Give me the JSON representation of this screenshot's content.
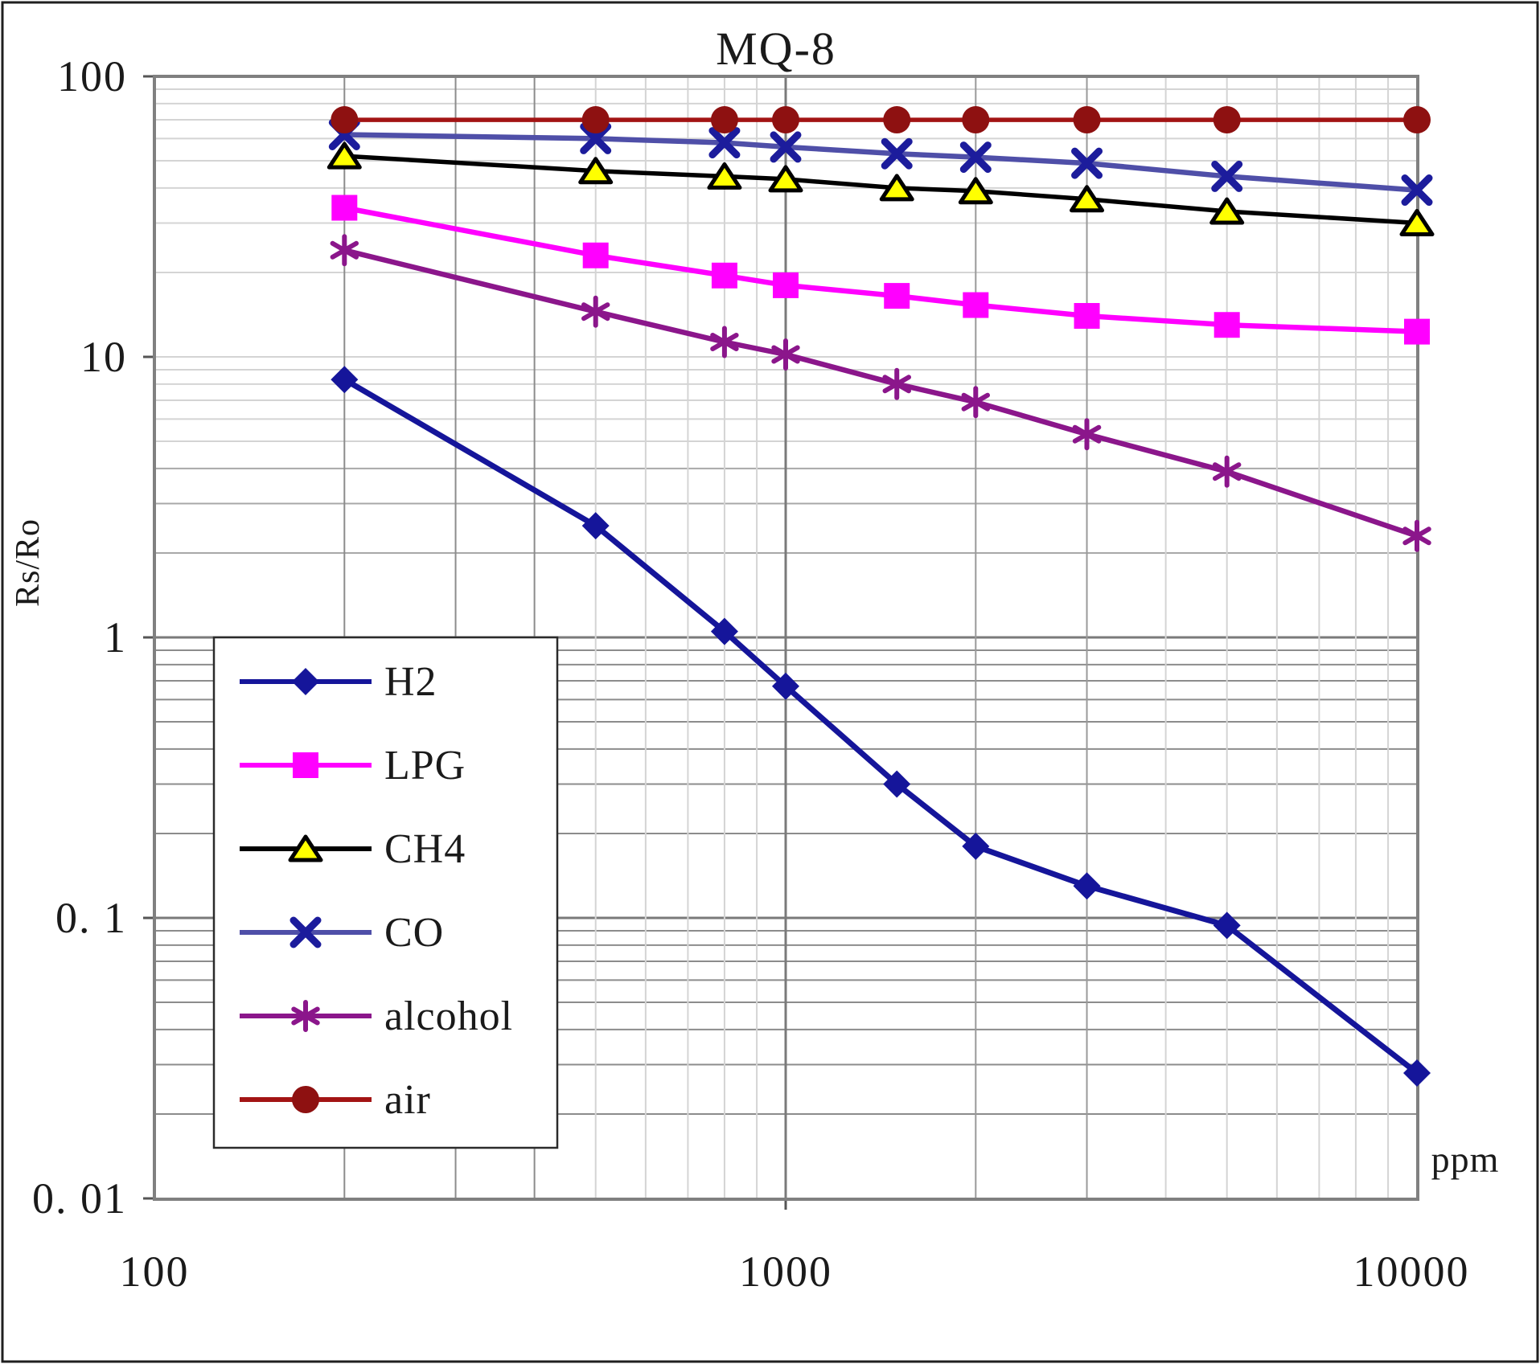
{
  "title": "MQ-8",
  "chart_data": {
    "type": "line",
    "title": "MQ-8",
    "xlabel": "ppm",
    "ylabel": "Rs/Ro",
    "x_scale": "log",
    "y_scale": "log",
    "xlim": [
      100,
      10000
    ],
    "ylim": [
      0.01,
      100
    ],
    "grid": "major-and-minor-log",
    "legend_position": "inside-lower-left",
    "x_ticks": [
      {
        "value": 100,
        "label": "100"
      },
      {
        "value": 1000,
        "label": "1000"
      },
      {
        "value": 10000,
        "label": "10000"
      }
    ],
    "y_ticks": [
      {
        "value": 100,
        "label": "100"
      },
      {
        "value": 10,
        "label": "10"
      },
      {
        "value": 1,
        "label": "1"
      },
      {
        "value": 0.1,
        "label": "0. 1"
      },
      {
        "value": 0.01,
        "label": "0. 01"
      }
    ],
    "x": [
      200,
      500,
      800,
      1000,
      1500,
      2000,
      3000,
      5000,
      10000
    ],
    "series": [
      {
        "name": "H2",
        "label": "H2",
        "marker": "diamond",
        "line_color": "#15159a",
        "marker_color": "#15159a",
        "values": [
          8.3,
          2.5,
          1.05,
          0.67,
          0.3,
          0.18,
          0.13,
          0.094,
          0.028
        ]
      },
      {
        "name": "LPG",
        "label": "LPG",
        "marker": "square",
        "line_color": "#ff00ff",
        "marker_color": "#ff00ff",
        "values": [
          34,
          23,
          19.5,
          18,
          16.5,
          15.3,
          14,
          13,
          12.3
        ]
      },
      {
        "name": "CH4",
        "label": "CH4",
        "marker": "triangle",
        "line_color": "#000000",
        "marker_color": "#ffff00",
        "values": [
          52,
          46,
          44,
          43,
          40,
          39,
          36.5,
          33,
          30
        ]
      },
      {
        "name": "CO",
        "label": "CO",
        "marker": "x",
        "line_color": "#4f4fa8",
        "marker_color": "#1c1c9c",
        "values": [
          62,
          60,
          58,
          56,
          53,
          51.5,
          49,
          44,
          39.3
        ]
      },
      {
        "name": "alcohol",
        "label": "alcohol",
        "marker": "star",
        "line_color": "#8b168b",
        "marker_color": "#8b168b",
        "values": [
          24,
          14.5,
          11.3,
          10.2,
          8.0,
          6.9,
          5.3,
          3.9,
          2.3
        ]
      },
      {
        "name": "air",
        "label": "air",
        "marker": "circle",
        "line_color": "#a31414",
        "marker_color": "#8e1111",
        "values": [
          70,
          70,
          70,
          70,
          70,
          70,
          70,
          70,
          70
        ]
      }
    ]
  }
}
